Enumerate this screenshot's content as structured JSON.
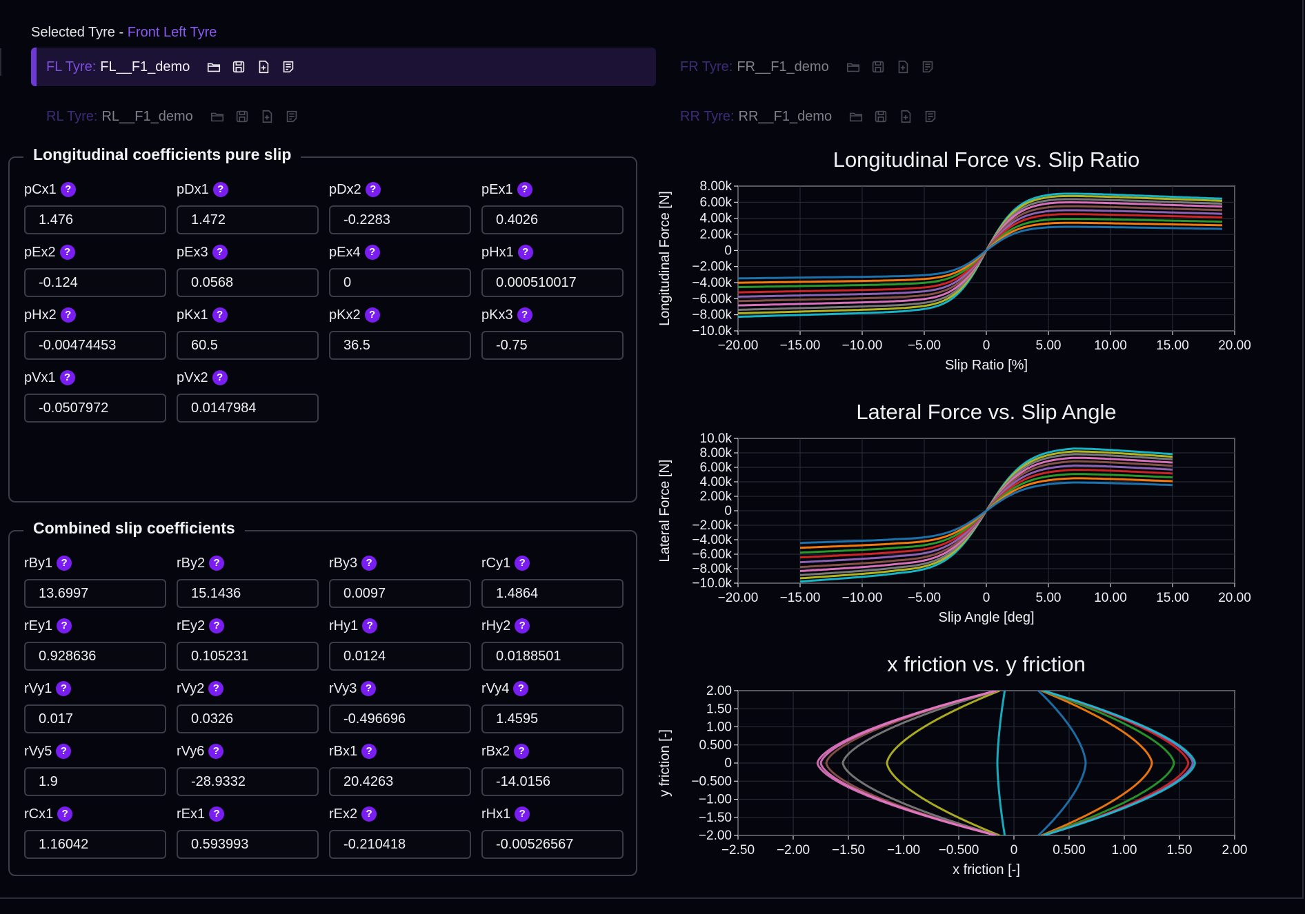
{
  "selected": {
    "prefix": "Selected Tyre - ",
    "name": "Front Left Tyre"
  },
  "tyres": {
    "fl": {
      "label": "FL Tyre:",
      "value": "FL__F1_demo"
    },
    "fr": {
      "label": "FR Tyre:",
      "value": "FR__F1_demo"
    },
    "rl": {
      "label": "RL Tyre:",
      "value": "RL__F1_demo"
    },
    "rr": {
      "label": "RR Tyre:",
      "value": "RR__F1_demo"
    }
  },
  "longitudinal": {
    "title": "Longitudinal coefficients pure slip",
    "fields": [
      {
        "name": "pCx1",
        "value": "1.476"
      },
      {
        "name": "pDx1",
        "value": "1.472"
      },
      {
        "name": "pDx2",
        "value": "-0.2283"
      },
      {
        "name": "pEx1",
        "value": "0.4026"
      },
      {
        "name": "pEx2",
        "value": "-0.124"
      },
      {
        "name": "pEx3",
        "value": "0.0568"
      },
      {
        "name": "pEx4",
        "value": "0"
      },
      {
        "name": "pHx1",
        "value": "0.000510017"
      },
      {
        "name": "pHx2",
        "value": "-0.00474453"
      },
      {
        "name": "pKx1",
        "value": "60.5"
      },
      {
        "name": "pKx2",
        "value": "36.5"
      },
      {
        "name": "pKx3",
        "value": "-0.75"
      },
      {
        "name": "pVx1",
        "value": "-0.0507972"
      },
      {
        "name": "pVx2",
        "value": "0.0147984"
      }
    ]
  },
  "combined": {
    "title": "Combined slip coefficients",
    "fields": [
      {
        "name": "rBy1",
        "value": "13.6997"
      },
      {
        "name": "rBy2",
        "value": "15.1436"
      },
      {
        "name": "rBy3",
        "value": "0.0097"
      },
      {
        "name": "rCy1",
        "value": "1.4864"
      },
      {
        "name": "rEy1",
        "value": "0.928636"
      },
      {
        "name": "rEy2",
        "value": "0.105231"
      },
      {
        "name": "rHy1",
        "value": "0.0124"
      },
      {
        "name": "rHy2",
        "value": "0.0188501"
      },
      {
        "name": "rVy1",
        "value": "0.017"
      },
      {
        "name": "rVy2",
        "value": "0.0326"
      },
      {
        "name": "rVy3",
        "value": "-0.496696"
      },
      {
        "name": "rVy4",
        "value": "1.4595"
      },
      {
        "name": "rVy5",
        "value": "1.9"
      },
      {
        "name": "rVy6",
        "value": "-28.9332"
      },
      {
        "name": "rBx1",
        "value": "20.4263"
      },
      {
        "name": "rBx2",
        "value": "-14.0156"
      },
      {
        "name": "rCx1",
        "value": "1.16042"
      },
      {
        "name": "rEx1",
        "value": "0.593993"
      },
      {
        "name": "rEx2",
        "value": "-0.210418"
      },
      {
        "name": "rHx1",
        "value": "-0.00526567"
      }
    ]
  },
  "series_colors": [
    "#1f77b4",
    "#ff7f0e",
    "#2ca02c",
    "#d62728",
    "#9467bd",
    "#8c564b",
    "#e377c2",
    "#7f7f7f",
    "#bcbd22",
    "#17becf"
  ],
  "chart_data": [
    {
      "type": "line",
      "title": "Longitudinal Force vs. Slip Ratio",
      "xlabel": "Slip Ratio [%]",
      "ylabel": "Longitudinal Force [N]",
      "xlim": [
        -20,
        20
      ],
      "ylim": [
        -10000,
        8000
      ],
      "xticks": [
        "−20.00",
        "−15.00",
        "−10.00",
        "−5.00",
        "0",
        "5.00",
        "10.00",
        "15.00",
        "20.00"
      ],
      "yticks": [
        "8.00k",
        "6.00k",
        "4.00k",
        "2.00k",
        "0",
        "−2.00k",
        "−4.00k",
        "−6.00k",
        "−8.00k",
        "−10.0k"
      ],
      "x_range": [
        -20,
        19
      ],
      "series": [
        {
          "peak_pos": 3000,
          "peak_neg": -3200
        },
        {
          "peak_pos": 3500,
          "peak_neg": -3700
        },
        {
          "peak_pos": 4000,
          "peak_neg": -4200
        },
        {
          "peak_pos": 4600,
          "peak_neg": -4800
        },
        {
          "peak_pos": 5100,
          "peak_neg": -5300
        },
        {
          "peak_pos": 5600,
          "peak_neg": -5800
        },
        {
          "peak_pos": 6100,
          "peak_neg": -6300
        },
        {
          "peak_pos": 6500,
          "peak_neg": -6800
        },
        {
          "peak_pos": 6900,
          "peak_neg": -7200
        },
        {
          "peak_pos": 7200,
          "peak_neg": -7600
        }
      ]
    },
    {
      "type": "line",
      "title": "Lateral Force vs. Slip Angle",
      "xlabel": "Slip Angle [deg]",
      "ylabel": "Lateral Force [N]",
      "xlim": [
        -20,
        20
      ],
      "ylim": [
        -10000,
        10000
      ],
      "xticks": [
        "−20.00",
        "−15.00",
        "−10.00",
        "−5.00",
        "0",
        "5.00",
        "10.00",
        "15.00",
        "20.00"
      ],
      "yticks": [
        "10.0k",
        "8.00k",
        "6.00k",
        "4.00k",
        "2.00k",
        "0",
        "−2.00k",
        "−4.00k",
        "−6.00k",
        "−8.00k",
        "−10.0k"
      ],
      "x_range": [
        -15,
        15
      ],
      "series": [
        {
          "peak_pos": 4000,
          "peak_neg": -4000
        },
        {
          "peak_pos": 4600,
          "peak_neg": -4600
        },
        {
          "peak_pos": 5200,
          "peak_neg": -5200
        },
        {
          "peak_pos": 5800,
          "peak_neg": -5800
        },
        {
          "peak_pos": 6400,
          "peak_neg": -6400
        },
        {
          "peak_pos": 7000,
          "peak_neg": -7000
        },
        {
          "peak_pos": 7500,
          "peak_neg": -7500
        },
        {
          "peak_pos": 8000,
          "peak_neg": -8000
        },
        {
          "peak_pos": 8400,
          "peak_neg": -8400
        },
        {
          "peak_pos": 8800,
          "peak_neg": -8800
        }
      ]
    },
    {
      "type": "line",
      "title": "x friction vs. y friction",
      "xlabel": "x friction [-]",
      "ylabel": "y friction [-]",
      "xlim": [
        -2.5,
        2
      ],
      "ylim": [
        -2,
        2
      ],
      "xticks": [
        "−2.50",
        "−2.00",
        "−1.50",
        "−1.00",
        "−0.500",
        "0",
        "0.500",
        "1.00",
        "1.50",
        "2.00"
      ],
      "yticks": [
        "2.00",
        "1.50",
        "1.00",
        "0.500",
        "0",
        "−0.500",
        "−1.00",
        "−1.50",
        "−2.00"
      ],
      "series": [
        {
          "side": "right",
          "vertex_x": 0.65
        },
        {
          "side": "right",
          "vertex_x": 1.25
        },
        {
          "side": "right",
          "vertex_x": 1.45
        },
        {
          "side": "right",
          "vertex_x": 1.58
        },
        {
          "side": "right",
          "vertex_x": 1.62
        },
        {
          "side": "right",
          "vertex_x": 1.64
        },
        {
          "side": "left",
          "vertex_x": -0.15
        },
        {
          "side": "left",
          "vertex_x": -1.15
        },
        {
          "side": "left",
          "vertex_x": -1.55
        },
        {
          "side": "left",
          "vertex_x": -1.7
        },
        {
          "side": "left",
          "vertex_x": -1.75
        },
        {
          "side": "left",
          "vertex_x": -1.78
        }
      ]
    }
  ]
}
